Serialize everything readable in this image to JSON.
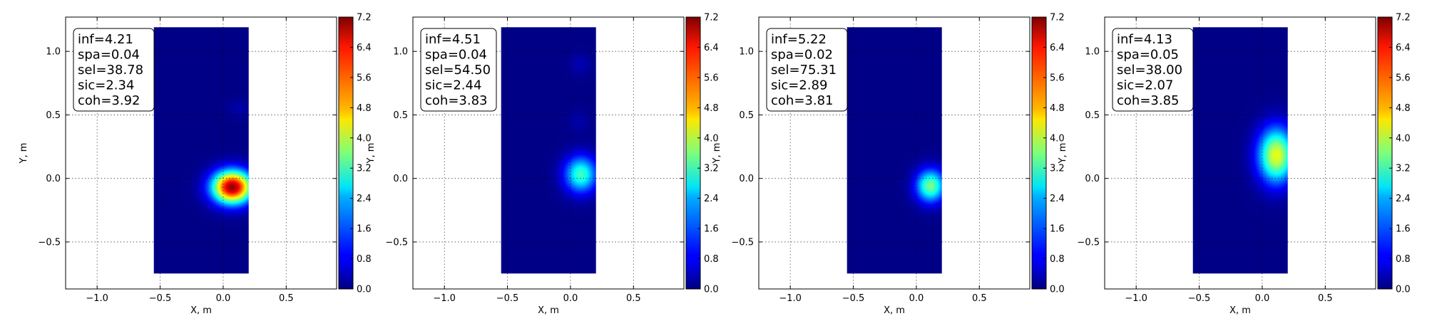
{
  "chart_data": [
    {
      "type": "heatmap",
      "xlabel": "X, m",
      "ylabel": "Y, m",
      "xlim": [
        -1.25,
        0.9
      ],
      "ylim": [
        -0.87,
        1.27
      ],
      "extent": {
        "x": [
          -0.55,
          0.2
        ],
        "y": [
          -0.75,
          1.19
        ]
      },
      "xticks": [
        -1.0,
        -0.5,
        0.0,
        0.5
      ],
      "yticks": [
        -0.5,
        0.0,
        0.5,
        1.0
      ],
      "grid": true,
      "colorbar": {
        "ticks": [
          "0.0",
          "0.8",
          "1.6",
          "2.4",
          "3.2",
          "4.0",
          "4.8",
          "5.6",
          "6.4",
          "7.2"
        ],
        "range": [
          0,
          7.2
        ]
      },
      "annotation_lines": [
        "inf=4.21",
        "spa=0.04",
        "sel=38.78",
        "sic=2.34",
        "coh=3.92"
      ],
      "peaks": [
        {
          "x": 0.07,
          "y": -0.07,
          "amp": 7.0,
          "sx": 0.11,
          "sy": 0.09
        },
        {
          "x": 0.12,
          "y": 0.55,
          "amp": 0.25,
          "sx": 0.06,
          "sy": 0.05
        }
      ],
      "background": 0.05
    },
    {
      "type": "heatmap",
      "xlabel": "X, m",
      "ylabel": "Y, m",
      "xlim": [
        -1.25,
        0.9
      ],
      "ylim": [
        -0.87,
        1.27
      ],
      "extent": {
        "x": [
          -0.55,
          0.2
        ],
        "y": [
          -0.75,
          1.19
        ]
      },
      "xticks": [
        -1.0,
        -0.5,
        0.0,
        0.5
      ],
      "yticks": [
        -0.5,
        0.0,
        0.5,
        1.0
      ],
      "grid": true,
      "colorbar": {
        "ticks": [
          "0.0",
          "0.8",
          "1.6",
          "2.4",
          "3.2",
          "4.0",
          "4.8",
          "5.6",
          "6.4",
          "7.2"
        ],
        "range": [
          0,
          7.2
        ]
      },
      "annotation_lines": [
        "inf=4.51",
        "spa=0.04",
        "sel=54.50",
        "sic=2.44",
        "coh=3.83"
      ],
      "peaks": [
        {
          "x": 0.08,
          "y": 0.03,
          "amp": 3.1,
          "sx": 0.09,
          "sy": 0.1
        },
        {
          "x": 0.07,
          "y": 0.9,
          "amp": 0.3,
          "sx": 0.06,
          "sy": 0.06
        },
        {
          "x": 0.06,
          "y": 0.45,
          "amp": 0.25,
          "sx": 0.06,
          "sy": 0.06
        }
      ],
      "background": 0.05
    },
    {
      "type": "heatmap",
      "xlabel": "X, m",
      "ylabel": "Y, m",
      "xlim": [
        -1.25,
        0.9
      ],
      "ylim": [
        -0.87,
        1.27
      ],
      "extent": {
        "x": [
          -0.55,
          0.2
        ],
        "y": [
          -0.75,
          1.19
        ]
      },
      "xticks": [
        -1.0,
        -0.5,
        0.0,
        0.5
      ],
      "yticks": [
        -0.5,
        0.0,
        0.5,
        1.0
      ],
      "grid": true,
      "colorbar": {
        "ticks": [
          "0.0",
          "0.8",
          "1.6",
          "2.4",
          "3.2",
          "4.0",
          "4.8",
          "5.6",
          "6.4",
          "7.2"
        ],
        "range": [
          0,
          7.2
        ]
      },
      "annotation_lines": [
        "inf=5.22",
        "spa=0.02",
        "sel=75.31",
        "sic=2.89",
        "coh=3.81"
      ],
      "peaks": [
        {
          "x": 0.11,
          "y": -0.06,
          "amp": 3.5,
          "sx": 0.08,
          "sy": 0.09
        }
      ],
      "background": 0.05
    },
    {
      "type": "heatmap",
      "xlabel": "X, m",
      "ylabel": "Y, m",
      "xlim": [
        -1.25,
        0.9
      ],
      "ylim": [
        -0.87,
        1.27
      ],
      "extent": {
        "x": [
          -0.55,
          0.2
        ],
        "y": [
          -0.75,
          1.19
        ]
      },
      "xticks": [
        -1.0,
        -0.5,
        0.0,
        0.5
      ],
      "yticks": [
        -0.5,
        0.0,
        0.5,
        1.0
      ],
      "grid": true,
      "colorbar": {
        "ticks": [
          "0.0",
          "0.8",
          "1.6",
          "2.4",
          "3.2",
          "4.0",
          "4.8",
          "5.6",
          "6.4",
          "7.2"
        ],
        "range": [
          0,
          7.2
        ]
      },
      "annotation_lines": [
        "inf=4.13",
        "spa=0.05",
        "sel=38.00",
        "sic=2.07",
        "coh=3.85"
      ],
      "peaks": [
        {
          "x": 0.11,
          "y": 0.18,
          "amp": 4.3,
          "sx": 0.1,
          "sy": 0.15
        }
      ],
      "background": 0.05
    }
  ]
}
